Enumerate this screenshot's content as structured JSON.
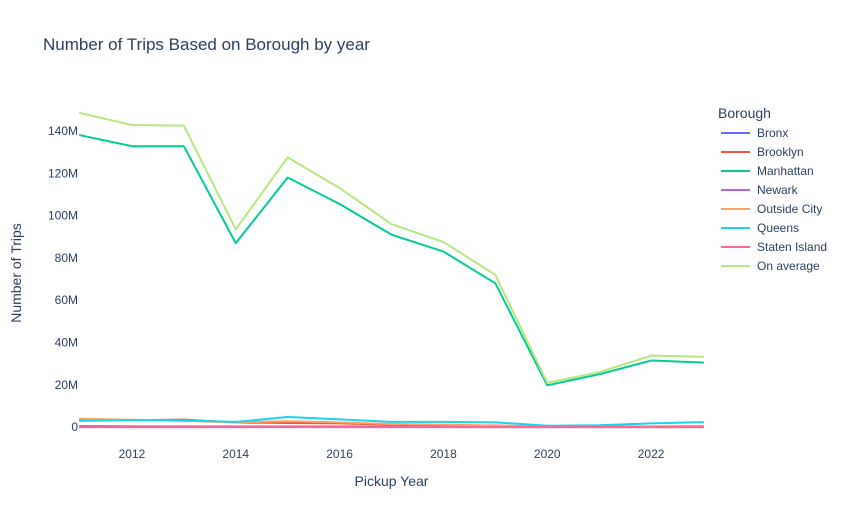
{
  "chart_data": {
    "type": "line",
    "title": "Number of Trips Based on Borough by year",
    "xlabel": "Pickup Year",
    "ylabel": "Number of Trips",
    "x": [
      2011,
      2012,
      2013,
      2014,
      2015,
      2016,
      2017,
      2018,
      2019,
      2020,
      2021,
      2022,
      2023
    ],
    "xlim": [
      2011,
      2023
    ],
    "ylim": [
      -7000000,
      157000000
    ],
    "x_ticks": [
      2012,
      2014,
      2016,
      2018,
      2020,
      2022
    ],
    "x_tick_labels": [
      "2012",
      "2014",
      "2016",
      "2018",
      "2020",
      "2022"
    ],
    "y_ticks": [
      0,
      20000000,
      40000000,
      60000000,
      80000000,
      100000000,
      120000000,
      140000000
    ],
    "y_tick_labels": [
      "0",
      "20M",
      "40M",
      "60M",
      "80M",
      "100M",
      "120M",
      "140M"
    ],
    "grid": false,
    "legend": {
      "title": "Borough",
      "position": "right"
    },
    "series": [
      {
        "name": "Bronx",
        "color": "#636efa",
        "values": [
          500000,
          400000,
          350000,
          300000,
          350000,
          300000,
          250000,
          200000,
          150000,
          80000,
          90000,
          100000,
          110000
        ]
      },
      {
        "name": "Brooklyn",
        "color": "#EF553B",
        "values": [
          3200000,
          3300000,
          3600000,
          2200000,
          2000000,
          1800000,
          1200000,
          1000000,
          800000,
          200000,
          300000,
          400000,
          500000
        ]
      },
      {
        "name": "Manhattan",
        "color": "#00cc96",
        "values": [
          138000000,
          132800000,
          132800000,
          87000000,
          118000000,
          105500000,
          91000000,
          83000000,
          68000000,
          19800000,
          25000000,
          31500000,
          30600000
        ]
      },
      {
        "name": "Newark",
        "color": "#ab63fa",
        "values": [
          100000,
          100000,
          100000,
          80000,
          80000,
          80000,
          70000,
          60000,
          50000,
          10000,
          20000,
          30000,
          30000
        ]
      },
      {
        "name": "Outside City",
        "color": "#FFA15A",
        "values": [
          4000000,
          3500000,
          3000000,
          2300000,
          2800000,
          2300000,
          1500000,
          1200000,
          700000,
          150000,
          200000,
          300000,
          300000
        ]
      },
      {
        "name": "Queens",
        "color": "#19d3f3",
        "values": [
          3000000,
          3300000,
          3200000,
          2500000,
          4800000,
          3700000,
          2500000,
          2500000,
          2300000,
          700000,
          900000,
          1800000,
          2400000
        ]
      },
      {
        "name": "Staten Island",
        "color": "#FF6692",
        "values": [
          20000,
          20000,
          20000,
          15000,
          15000,
          15000,
          12000,
          10000,
          8000,
          2000,
          3000,
          4000,
          4000
        ]
      },
      {
        "name": "On average",
        "color": "#B6E880",
        "values": [
          148500000,
          142800000,
          142500000,
          93500000,
          127500000,
          113000000,
          96000000,
          87500000,
          72000000,
          21000000,
          26000000,
          33800000,
          33300000
        ]
      }
    ]
  }
}
